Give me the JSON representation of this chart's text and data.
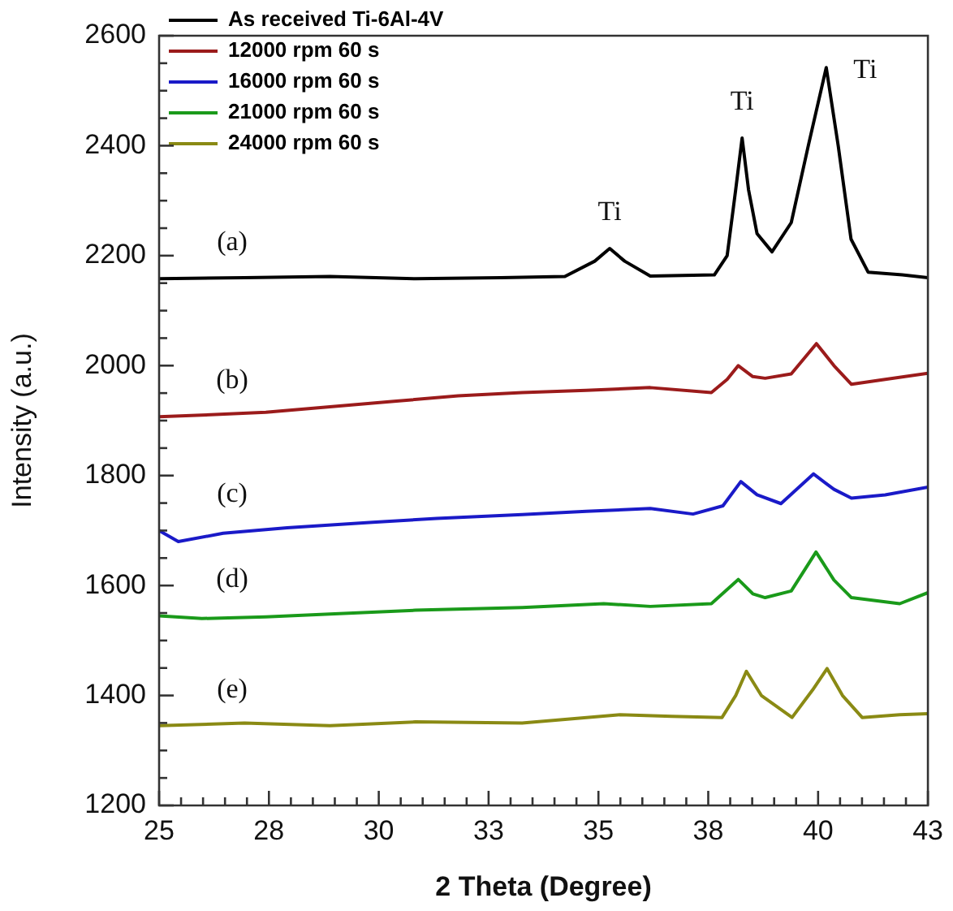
{
  "chart_data": {
    "type": "line",
    "xlabel": "2 Theta (Degree)",
    "ylabel": "Intensity (a.u.)",
    "xlim": [
      25,
      43
    ],
    "ylim": [
      1200,
      2600
    ],
    "xticks": [
      {
        "value": 25,
        "label": "25"
      },
      {
        "value": 25.514,
        "label": null
      },
      {
        "value": 26.029,
        "label": null
      },
      {
        "value": 26.543,
        "label": null
      },
      {
        "value": 27.057,
        "label": null
      },
      {
        "value": 27.571,
        "label": "28"
      },
      {
        "value": 28.086,
        "label": null
      },
      {
        "value": 28.6,
        "label": null
      },
      {
        "value": 29.114,
        "label": null
      },
      {
        "value": 29.629,
        "label": null
      },
      {
        "value": 30.143,
        "label": "30"
      },
      {
        "value": 30.657,
        "label": null
      },
      {
        "value": 31.171,
        "label": null
      },
      {
        "value": 31.686,
        "label": null
      },
      {
        "value": 32.2,
        "label": null
      },
      {
        "value": 32.714,
        "label": "33"
      },
      {
        "value": 33.229,
        "label": null
      },
      {
        "value": 33.743,
        "label": null
      },
      {
        "value": 34.257,
        "label": null
      },
      {
        "value": 34.771,
        "label": null
      },
      {
        "value": 35.286,
        "label": "35"
      },
      {
        "value": 35.8,
        "label": null
      },
      {
        "value": 36.314,
        "label": null
      },
      {
        "value": 36.829,
        "label": null
      },
      {
        "value": 37.343,
        "label": null
      },
      {
        "value": 37.857,
        "label": "38"
      },
      {
        "value": 38.371,
        "label": null
      },
      {
        "value": 38.886,
        "label": null
      },
      {
        "value": 39.4,
        "label": null
      },
      {
        "value": 39.914,
        "label": null
      },
      {
        "value": 40.429,
        "label": "40"
      },
      {
        "value": 40.943,
        "label": null
      },
      {
        "value": 41.457,
        "label": null
      },
      {
        "value": 41.971,
        "label": null
      },
      {
        "value": 42.486,
        "label": null
      },
      {
        "value": 43,
        "label": "43"
      }
    ],
    "yticks": [
      1200,
      {
        "value": 1250,
        "label": null
      },
      {
        "value": 1300,
        "label": null
      },
      {
        "value": 1350,
        "label": null
      },
      1400,
      {
        "value": 1450,
        "label": null
      },
      {
        "value": 1500,
        "label": null
      },
      {
        "value": 1550,
        "label": null
      },
      1600,
      {
        "value": 1650,
        "label": null
      },
      {
        "value": 1700,
        "label": null
      },
      {
        "value": 1750,
        "label": null
      },
      1800,
      {
        "value": 1850,
        "label": null
      },
      {
        "value": 1900,
        "label": null
      },
      {
        "value": 1950,
        "label": null
      },
      2000,
      {
        "value": 2050,
        "label": null
      },
      {
        "value": 2100,
        "label": null
      },
      {
        "value": 2150,
        "label": null
      },
      2200,
      {
        "value": 2250,
        "label": null
      },
      {
        "value": 2300,
        "label": null
      },
      {
        "value": 2350,
        "label": null
      },
      2400,
      {
        "value": 2450,
        "label": null
      },
      {
        "value": 2500,
        "label": null
      },
      {
        "value": 2550,
        "label": null
      },
      2600
    ],
    "grid": false,
    "legend": "top left",
    "marker": "none",
    "line_style": "solid",
    "series": [
      {
        "name": "As received Ti-6Al-4V",
        "color": "#000000",
        "x": [
          25,
          27,
          29,
          31,
          33,
          34.5,
          35.2,
          35.55,
          35.9,
          36.5,
          38,
          38.3,
          38.5,
          38.65,
          38.8,
          39,
          39.35,
          39.8,
          40.2,
          40.62,
          40.9,
          41.2,
          41.6,
          42.4,
          43
        ],
        "values": [
          2158,
          2160,
          2162,
          2158,
          2160,
          2162,
          2190,
          2213,
          2190,
          2163,
          2165,
          2200,
          2320,
          2414,
          2320,
          2240,
          2207,
          2260,
          2400,
          2542,
          2400,
          2230,
          2170,
          2165,
          2160
        ]
      },
      {
        "name": "12000 rpm 60 s",
        "color": "#9b1b1b",
        "x": [
          25,
          26,
          27.5,
          29,
          30.5,
          32,
          33.5,
          35,
          36.5,
          37.93,
          38.3,
          38.56,
          38.9,
          39.19,
          39.8,
          40.39,
          40.8,
          41.21,
          42,
          43
        ],
        "values": [
          1907,
          1910,
          1915,
          1925,
          1935,
          1945,
          1951,
          1955,
          1960,
          1951,
          1975,
          2000,
          1980,
          1977,
          1985,
          2040,
          2000,
          1966,
          1975,
          1986
        ]
      },
      {
        "name": "16000 rpm 60 s",
        "color": "#1a1ac8",
        "x": [
          25,
          25.45,
          26.5,
          28,
          30,
          31.5,
          33.5,
          35,
          36.5,
          37.5,
          38.2,
          38.62,
          39,
          39.56,
          40.32,
          40.8,
          41.21,
          42,
          43
        ],
        "values": [
          1700,
          1680,
          1695,
          1705,
          1715,
          1722,
          1729,
          1735,
          1740,
          1730,
          1745,
          1789,
          1765,
          1749,
          1803,
          1775,
          1759,
          1765,
          1779
        ]
      },
      {
        "name": "21000 rpm 60 s",
        "color": "#1a9a1a",
        "x": [
          25,
          26,
          27.5,
          29,
          31,
          33.5,
          35.41,
          36.5,
          37.93,
          38.56,
          38.9,
          39.19,
          39.8,
          40.38,
          40.8,
          41.21,
          42.34,
          43
        ],
        "values": [
          1545,
          1540,
          1543,
          1548,
          1555,
          1560,
          1567,
          1562,
          1567,
          1611,
          1585,
          1578,
          1590,
          1661,
          1610,
          1578,
          1567,
          1587
        ]
      },
      {
        "name": "24000 rpm 60 s",
        "color": "#8a8a14",
        "x": [
          25,
          27,
          29,
          31,
          33.5,
          35.79,
          37,
          38.18,
          38.5,
          38.75,
          39.1,
          39.82,
          40.3,
          40.64,
          41,
          41.46,
          42.34,
          43
        ],
        "values": [
          1345,
          1350,
          1345,
          1352,
          1350,
          1365,
          1362,
          1360,
          1400,
          1444,
          1400,
          1360,
          1410,
          1449,
          1400,
          1360,
          1365,
          1367
        ]
      }
    ],
    "annotations": [
      {
        "text": "Ti",
        "x": 35.55,
        "y": 2213
      },
      {
        "text": "Ti",
        "x": 38.65,
        "y": 2414
      },
      {
        "text": "Ti",
        "x": 40.62,
        "y": 2542
      },
      {
        "text": "(a)",
        "x": 25,
        "y": 2158
      },
      {
        "text": "(b)",
        "x": 25,
        "y": 1907
      },
      {
        "text": "(c)",
        "x": 25,
        "y": 1700
      },
      {
        "text": "(d)",
        "x": 25,
        "y": 1545
      },
      {
        "text": "(e)",
        "x": 25,
        "y": 1345
      }
    ]
  }
}
